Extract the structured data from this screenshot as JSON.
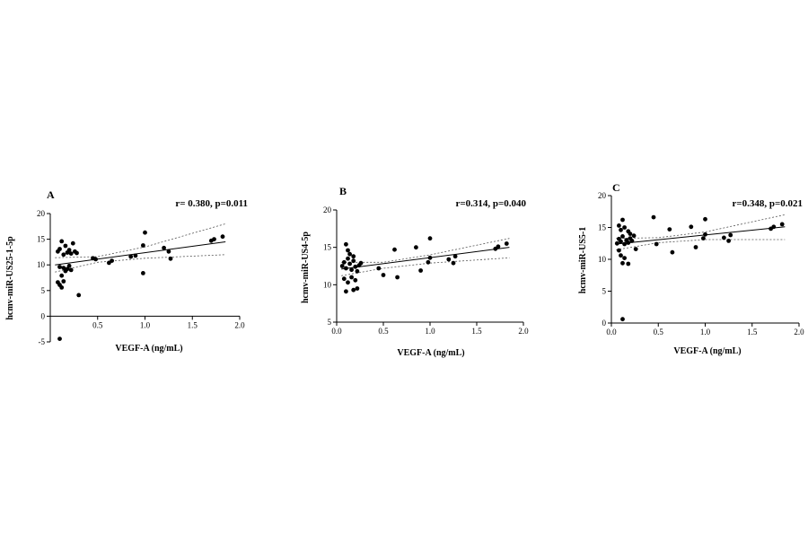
{
  "chart_data": [
    {
      "type": "scatter",
      "panel_label": "A",
      "annotation": "r= 0.380, p=0.011",
      "xlabel": "VEGF-A (ng/mL)",
      "ylabel": "hcmv-miR-US25-1-5p",
      "xlim": [
        0,
        2.0
      ],
      "ylim": [
        -5,
        20
      ],
      "xticks": [
        "0.5",
        "1.0",
        "1.5",
        "2.0"
      ],
      "xtick_values": [
        0.5,
        1.0,
        1.5,
        2.0
      ],
      "yticks": [
        "-5",
        "0",
        "5",
        "10",
        "15",
        "20"
      ],
      "ytick_values": [
        -5,
        0,
        5,
        10,
        15,
        20
      ],
      "points": [
        [
          0.08,
          12.6
        ],
        [
          0.1,
          13.1
        ],
        [
          0.12,
          14.6
        ],
        [
          0.14,
          12.0
        ],
        [
          0.16,
          13.7
        ],
        [
          0.18,
          12.4
        ],
        [
          0.2,
          12.9
        ],
        [
          0.22,
          12.2
        ],
        [
          0.24,
          14.2
        ],
        [
          0.26,
          12.6
        ],
        [
          0.28,
          12.3
        ],
        [
          0.1,
          9.6
        ],
        [
          0.14,
          9.4
        ],
        [
          0.18,
          9.2
        ],
        [
          0.2,
          9.8
        ],
        [
          0.22,
          9.0
        ],
        [
          0.16,
          8.8
        ],
        [
          0.08,
          6.6
        ],
        [
          0.1,
          6.1
        ],
        [
          0.12,
          5.6
        ],
        [
          0.14,
          6.8
        ],
        [
          0.12,
          7.9
        ],
        [
          0.3,
          4.1
        ],
        [
          0.1,
          -4.4
        ],
        [
          0.45,
          11.3
        ],
        [
          0.48,
          11.1
        ],
        [
          0.62,
          10.4
        ],
        [
          0.65,
          10.8
        ],
        [
          0.85,
          11.6
        ],
        [
          0.9,
          11.8
        ],
        [
          0.98,
          8.4
        ],
        [
          0.98,
          13.8
        ],
        [
          1.0,
          16.3
        ],
        [
          1.2,
          13.3
        ],
        [
          1.25,
          12.6
        ],
        [
          1.27,
          11.2
        ],
        [
          1.7,
          14.7
        ],
        [
          1.73,
          15.0
        ],
        [
          1.82,
          15.5
        ]
      ],
      "fit_line": [
        [
          0.05,
          10.0
        ],
        [
          1.85,
          14.5
        ]
      ],
      "ci_upper": [
        [
          0.05,
          11.4
        ],
        [
          0.5,
          11.6
        ],
        [
          1.0,
          13.5
        ],
        [
          1.85,
          18.0
        ]
      ],
      "ci_lower": [
        [
          0.05,
          8.6
        ],
        [
          0.5,
          10.5
        ],
        [
          1.0,
          11.3
        ],
        [
          1.85,
          12.0
        ]
      ]
    },
    {
      "type": "scatter",
      "panel_label": "B",
      "annotation": "r=0.314, p=0.040",
      "xlabel": "VEGF-A (ng/mL)",
      "ylabel": "hcmv-miR-US4-5p",
      "xlim": [
        0,
        2.0
      ],
      "ylim": [
        5,
        20
      ],
      "xticks": [
        "0.0",
        "0.5",
        "1.0",
        "1.5",
        "2.0"
      ],
      "xtick_values": [
        0.0,
        0.5,
        1.0,
        1.5,
        2.0
      ],
      "yticks": [
        "5",
        "10",
        "15",
        "20"
      ],
      "ytick_values": [
        5,
        10,
        15,
        20
      ],
      "points": [
        [
          0.06,
          12.5
        ],
        [
          0.08,
          13.0
        ],
        [
          0.1,
          12.2
        ],
        [
          0.12,
          13.5
        ],
        [
          0.14,
          12.8
        ],
        [
          0.16,
          12.0
        ],
        [
          0.18,
          13.2
        ],
        [
          0.2,
          12.4
        ],
        [
          0.22,
          11.8
        ],
        [
          0.24,
          12.6
        ],
        [
          0.26,
          12.9
        ],
        [
          0.1,
          15.4
        ],
        [
          0.12,
          14.6
        ],
        [
          0.14,
          14.1
        ],
        [
          0.18,
          13.8
        ],
        [
          0.08,
          10.8
        ],
        [
          0.12,
          10.3
        ],
        [
          0.16,
          11.0
        ],
        [
          0.2,
          10.6
        ],
        [
          0.1,
          9.1
        ],
        [
          0.18,
          9.3
        ],
        [
          0.22,
          9.5
        ],
        [
          0.45,
          12.2
        ],
        [
          0.5,
          11.3
        ],
        [
          0.62,
          14.7
        ],
        [
          0.65,
          11.0
        ],
        [
          0.85,
          15.0
        ],
        [
          0.9,
          11.9
        ],
        [
          0.98,
          13.0
        ],
        [
          1.0,
          13.6
        ],
        [
          1.0,
          16.2
        ],
        [
          1.2,
          13.4
        ],
        [
          1.25,
          12.9
        ],
        [
          1.27,
          13.8
        ],
        [
          1.7,
          14.8
        ],
        [
          1.73,
          15.1
        ],
        [
          1.82,
          15.5
        ]
      ],
      "fit_line": [
        [
          0.05,
          12.1
        ],
        [
          1.85,
          15.0
        ]
      ],
      "ci_upper": [
        [
          0.05,
          13.0
        ],
        [
          0.5,
          13.0
        ],
        [
          1.0,
          14.0
        ],
        [
          1.85,
          16.2
        ]
      ],
      "ci_lower": [
        [
          0.05,
          11.2
        ],
        [
          0.5,
          12.2
        ],
        [
          1.0,
          12.9
        ],
        [
          1.85,
          13.6
        ]
      ]
    },
    {
      "type": "scatter",
      "panel_label": "C",
      "annotation": "r=0.348, p=0.021",
      "xlabel": "VEGF-A (ng/mL)",
      "ylabel": "hcmv-miR-US5-1",
      "xlim": [
        0,
        2.0
      ],
      "ylim": [
        0,
        20
      ],
      "xticks": [
        "0.0",
        "0.5",
        "1.0",
        "1.5",
        "2.0"
      ],
      "xtick_values": [
        0.0,
        0.5,
        1.0,
        1.5,
        2.0
      ],
      "yticks": [
        "0",
        "5",
        "10",
        "15",
        "20"
      ],
      "ytick_values": [
        0,
        5,
        10,
        15,
        20
      ],
      "points": [
        [
          0.06,
          12.5
        ],
        [
          0.08,
          13.2
        ],
        [
          0.1,
          12.8
        ],
        [
          0.12,
          13.6
        ],
        [
          0.14,
          12.4
        ],
        [
          0.16,
          13.0
        ],
        [
          0.18,
          12.6
        ],
        [
          0.2,
          13.3
        ],
        [
          0.22,
          12.9
        ],
        [
          0.24,
          13.7
        ],
        [
          0.26,
          11.6
        ],
        [
          0.08,
          15.3
        ],
        [
          0.1,
          14.6
        ],
        [
          0.12,
          16.2
        ],
        [
          0.14,
          15.0
        ],
        [
          0.18,
          14.4
        ],
        [
          0.2,
          14.0
        ],
        [
          0.08,
          11.4
        ],
        [
          0.1,
          10.6
        ],
        [
          0.14,
          10.2
        ],
        [
          0.12,
          9.4
        ],
        [
          0.18,
          9.3
        ],
        [
          0.12,
          0.6
        ],
        [
          0.45,
          16.6
        ],
        [
          0.48,
          12.4
        ],
        [
          0.62,
          14.7
        ],
        [
          0.65,
          11.1
        ],
        [
          0.85,
          15.1
        ],
        [
          0.9,
          11.9
        ],
        [
          0.98,
          13.3
        ],
        [
          1.0,
          13.9
        ],
        [
          1.0,
          16.3
        ],
        [
          1.2,
          13.4
        ],
        [
          1.25,
          12.9
        ],
        [
          1.27,
          13.8
        ],
        [
          1.7,
          14.8
        ],
        [
          1.73,
          15.1
        ],
        [
          1.82,
          15.5
        ]
      ],
      "fit_line": [
        [
          0.05,
          12.4
        ],
        [
          1.85,
          15.1
        ]
      ],
      "ci_upper": [
        [
          0.05,
          13.3
        ],
        [
          0.5,
          13.4
        ],
        [
          1.0,
          14.3
        ],
        [
          1.85,
          17.0
        ]
      ],
      "ci_lower": [
        [
          0.05,
          11.5
        ],
        [
          0.5,
          12.6
        ],
        [
          1.0,
          13.1
        ],
        [
          1.85,
          13.1
        ]
      ]
    }
  ]
}
